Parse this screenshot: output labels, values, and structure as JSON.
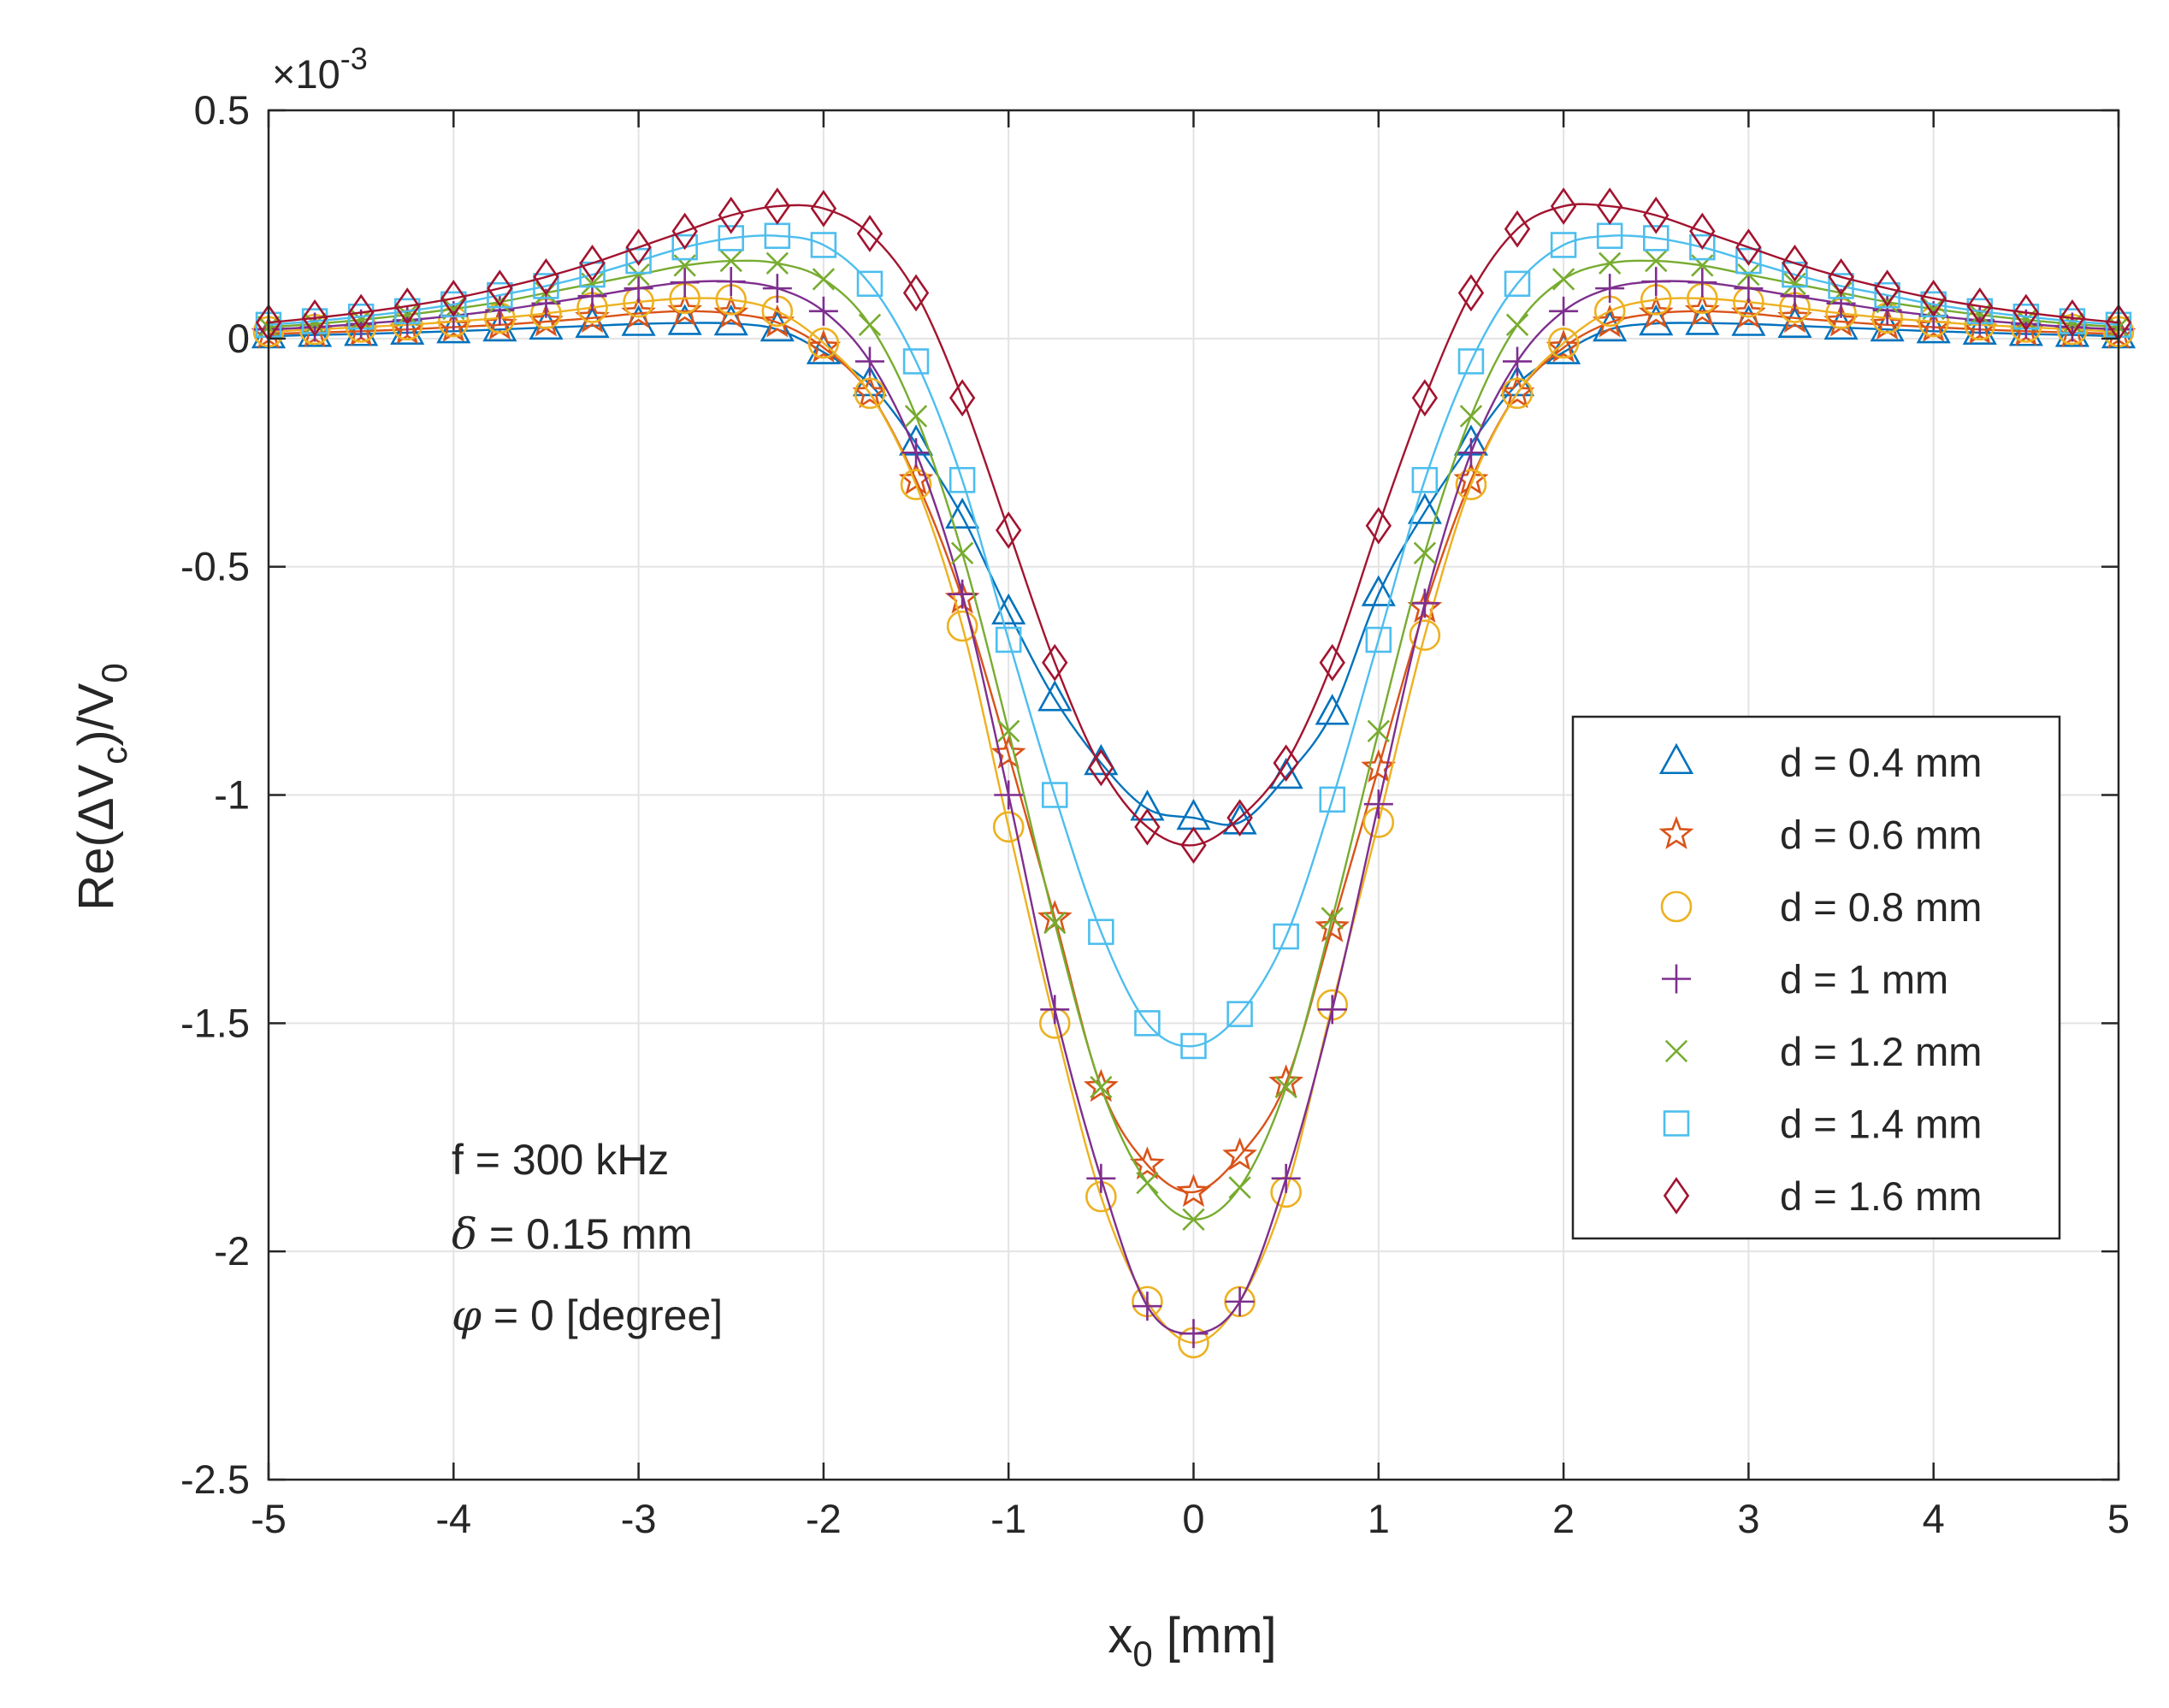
{
  "chart_data": {
    "type": "line",
    "title": "",
    "xlabel": {
      "base": "x",
      "sub": "0",
      "rest": " [mm]"
    },
    "ylabel": {
      "pre": "Re(",
      "delta": "Δ",
      "v": "V",
      "sub1": "c",
      "mid": ")/V",
      "sub2": "0"
    },
    "y_scale_label": {
      "times": "×10",
      "exp": "-3"
    },
    "xlim": [
      -5,
      5
    ],
    "ylim": [
      -2.5,
      0.5
    ],
    "xticks": [
      -5,
      -4,
      -3,
      -2,
      -1,
      0,
      1,
      2,
      3,
      4,
      5
    ],
    "xtick_labels": [
      "-5",
      "-4",
      "-3",
      "-2",
      "-1",
      "0",
      "1",
      "2",
      "3",
      "4",
      "5"
    ],
    "yticks": [
      0.5,
      0,
      -0.5,
      -1,
      -1.5,
      -2,
      -2.5
    ],
    "ytick_labels": [
      "0.5",
      "0",
      "-0.5",
      "-1",
      "-1.5",
      "-2",
      "-2.5"
    ],
    "grid": true,
    "legend_position": "right-center",
    "x": [
      -5,
      -4.75,
      -4.5,
      -4.25,
      -4,
      -3.75,
      -3.5,
      -3.25,
      -3,
      -2.75,
      -2.5,
      -2.25,
      -2,
      -1.75,
      -1.5,
      -1.25,
      -1,
      -0.75,
      -0.5,
      -0.25,
      0,
      0.25,
      0.5,
      0.75,
      1,
      1.25,
      1.5,
      1.75,
      2,
      2.25,
      2.5,
      2.75,
      3,
      3.25,
      3.5,
      3.75,
      4,
      4.25,
      4.5,
      4.75,
      5
    ],
    "series": [
      {
        "name": "d = 0.4 mm",
        "marker": "triangle",
        "color": "#0072BD",
        "values": [
          0.005,
          0.008,
          0.01,
          0.013,
          0.016,
          0.02,
          0.024,
          0.028,
          0.032,
          0.034,
          0.033,
          0.02,
          -0.03,
          -0.1,
          -0.23,
          -0.39,
          -0.6,
          -0.79,
          -0.93,
          -1.03,
          -1.05,
          -1.06,
          -0.96,
          -0.82,
          -0.56,
          -0.38,
          -0.23,
          -0.1,
          -0.03,
          0.02,
          0.033,
          0.034,
          0.032,
          0.028,
          0.024,
          0.02,
          0.016,
          0.013,
          0.01,
          0.008,
          0.005
        ]
      },
      {
        "name": "d = 0.6 mm",
        "marker": "star",
        "color": "#D95319",
        "values": [
          0.01,
          0.013,
          0.016,
          0.02,
          0.025,
          0.03,
          0.037,
          0.045,
          0.055,
          0.06,
          0.055,
          0.035,
          -0.02,
          -0.12,
          -0.31,
          -0.57,
          -0.91,
          -1.27,
          -1.64,
          -1.81,
          -1.87,
          -1.79,
          -1.63,
          -1.29,
          -0.94,
          -0.59,
          -0.31,
          -0.12,
          -0.02,
          0.035,
          0.055,
          0.06,
          0.055,
          0.045,
          0.037,
          0.03,
          0.025,
          0.02,
          0.016,
          0.013,
          0.01
        ]
      },
      {
        "name": "d = 0.8 mm",
        "marker": "circle",
        "color": "#EDB120",
        "values": [
          0.015,
          0.02,
          0.025,
          0.03,
          0.037,
          0.045,
          0.055,
          0.068,
          0.08,
          0.088,
          0.085,
          0.06,
          -0.01,
          -0.12,
          -0.32,
          -0.63,
          -1.07,
          -1.5,
          -1.88,
          -2.11,
          -2.2,
          -2.11,
          -1.87,
          -1.46,
          -1.06,
          -0.65,
          -0.32,
          -0.12,
          -0.01,
          0.06,
          0.085,
          0.088,
          0.08,
          0.068,
          0.055,
          0.045,
          0.037,
          0.03,
          0.025,
          0.02,
          0.015
        ]
      },
      {
        "name": "d = 1 mm",
        "marker": "plus",
        "color": "#7E2F8E",
        "values": [
          0.02,
          0.025,
          0.032,
          0.04,
          0.05,
          0.062,
          0.077,
          0.093,
          0.11,
          0.123,
          0.125,
          0.11,
          0.06,
          -0.05,
          -0.25,
          -0.56,
          -1.0,
          -1.47,
          -1.84,
          -2.12,
          -2.18,
          -2.11,
          -1.84,
          -1.47,
          -1.02,
          -0.58,
          -0.25,
          -0.05,
          0.06,
          0.11,
          0.125,
          0.123,
          0.11,
          0.093,
          0.077,
          0.062,
          0.05,
          0.04,
          0.032,
          0.025,
          0.02
        ]
      },
      {
        "name": "d = 1.2 mm",
        "marker": "cross",
        "color": "#77AC30",
        "values": [
          0.025,
          0.032,
          0.041,
          0.052,
          0.065,
          0.08,
          0.1,
          0.12,
          0.14,
          0.16,
          0.17,
          0.165,
          0.13,
          0.03,
          -0.17,
          -0.47,
          -0.86,
          -1.28,
          -1.64,
          -1.85,
          -1.93,
          -1.86,
          -1.64,
          -1.27,
          -0.86,
          -0.47,
          -0.17,
          0.03,
          0.13,
          0.165,
          0.17,
          0.16,
          0.14,
          0.12,
          0.1,
          0.08,
          0.065,
          0.052,
          0.041,
          0.032,
          0.025
        ]
      },
      {
        "name": "d = 1.4 mm",
        "marker": "square",
        "color": "#4DBEEE",
        "values": [
          0.03,
          0.038,
          0.048,
          0.06,
          0.075,
          0.095,
          0.115,
          0.14,
          0.17,
          0.2,
          0.22,
          0.225,
          0.205,
          0.12,
          -0.05,
          -0.31,
          -0.66,
          -1.0,
          -1.3,
          -1.5,
          -1.55,
          -1.48,
          -1.31,
          -1.01,
          -0.66,
          -0.31,
          -0.05,
          0.12,
          0.205,
          0.225,
          0.22,
          0.2,
          0.17,
          0.14,
          0.115,
          0.095,
          0.075,
          0.06,
          0.048,
          0.038,
          0.03
        ]
      },
      {
        "name": "d = 1.6 mm",
        "marker": "diamond",
        "color": "#A2142F",
        "values": [
          0.035,
          0.045,
          0.057,
          0.071,
          0.088,
          0.11,
          0.135,
          0.165,
          0.2,
          0.235,
          0.27,
          0.29,
          0.285,
          0.23,
          0.1,
          -0.13,
          -0.42,
          -0.71,
          -0.94,
          -1.07,
          -1.11,
          -1.05,
          -0.93,
          -0.71,
          -0.41,
          -0.13,
          0.1,
          0.24,
          0.29,
          0.29,
          0.27,
          0.235,
          0.2,
          0.165,
          0.135,
          0.11,
          0.088,
          0.071,
          0.057,
          0.045,
          0.035
        ]
      }
    ],
    "annotations": {
      "line1": "f = 300 kHz",
      "line2_symbol": "δ",
      "line2_rest": " = 0.15 mm",
      "line3_symbol": "φ",
      "line3_rest": " = 0 [degree]"
    }
  }
}
